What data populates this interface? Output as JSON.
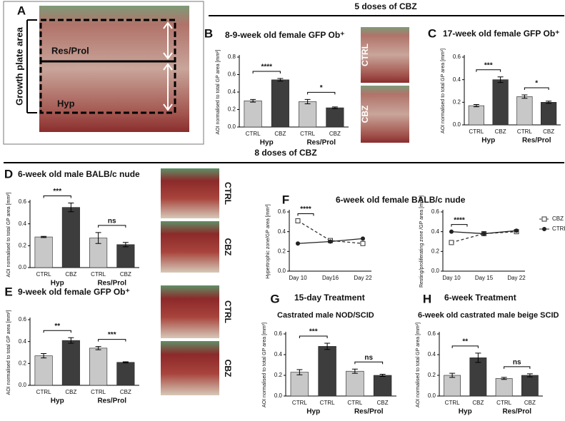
{
  "figure": {
    "headers": [
      "5 doses of CBZ",
      "8 doses of CBZ"
    ],
    "panel_a": {
      "label": "A",
      "side_label": "Growth plate area",
      "zones": [
        "Res/Prol",
        "Hyp"
      ]
    },
    "image_labels": [
      "CTRL",
      "CBZ",
      "CTRL",
      "CBZ",
      "CTRL",
      "CBZ"
    ]
  },
  "chart_data": [
    {
      "type": "bar",
      "label": "B",
      "title": "8-9-week old female GFP Ob⁺",
      "ylabel": "AOI normalised to total GP area [mm²]",
      "categories": [
        "CTRL",
        "CBZ",
        "CTRL",
        "CBZ"
      ],
      "groups": [
        "Hyp",
        "Res/Prol"
      ],
      "values": [
        0.3,
        0.54,
        0.29,
        0.22
      ],
      "errors": [
        0.015,
        0.015,
        0.025,
        0.01
      ],
      "colors": [
        "#c8c8c8",
        "#3d3d3d",
        "#c8c8c8",
        "#3d3d3d"
      ],
      "significance": [
        "****",
        "*"
      ],
      "ylim": [
        0,
        0.8
      ],
      "yticks": [
        {
          "value": 0,
          "label": "0.0"
        },
        0.2,
        0.4,
        0.6,
        0.8
      ]
    },
    {
      "type": "bar",
      "label": "C",
      "title": "17-week old female GFP Ob⁺",
      "ylabel": "AOI normalised to total GP area [mm²]",
      "categories": [
        "CTRL",
        "CBZ",
        "CTRL",
        "CBZ"
      ],
      "groups": [
        "Hyp",
        "Res/Prol"
      ],
      "values": [
        0.17,
        0.4,
        0.25,
        0.2
      ],
      "errors": [
        0.01,
        0.025,
        0.015,
        0.01
      ],
      "colors": [
        "#c8c8c8",
        "#3d3d3d",
        "#c8c8c8",
        "#3d3d3d"
      ],
      "significance": [
        "***",
        "*"
      ],
      "ylim": [
        0,
        0.6
      ],
      "yticks": [
        {
          "value": 0,
          "label": "0.0"
        },
        0.2,
        0.4,
        0.6
      ]
    },
    {
      "type": "bar",
      "label": "D",
      "title": "6-week old male BALB/c nude",
      "ylabel": "AOI normalised to total GP area [mm²]",
      "categories": [
        "CTRL",
        "CBZ",
        "CTRL",
        "CBZ"
      ],
      "groups": [
        "Hyp",
        "Res/Prol"
      ],
      "values": [
        0.28,
        0.55,
        0.27,
        0.21
      ],
      "errors": [
        0.005,
        0.04,
        0.05,
        0.02
      ],
      "colors": [
        "#c8c8c8",
        "#3d3d3d",
        "#c8c8c8",
        "#3d3d3d"
      ],
      "significance": [
        "***",
        "ns"
      ],
      "ylim": [
        0,
        0.6
      ],
      "yticks": [
        {
          "value": 0,
          "label": "0.0"
        },
        0.2,
        0.4,
        0.6
      ]
    },
    {
      "type": "bar",
      "label": "E",
      "title": "9-week old female GFP Ob⁺",
      "ylabel": "AOI normalised to total GP area [mm²]",
      "categories": [
        "CTRL",
        "CBZ",
        "CTRL",
        "CBZ"
      ],
      "groups": [
        "Hyp",
        "Res/Prol"
      ],
      "values": [
        0.27,
        0.41,
        0.34,
        0.21
      ],
      "errors": [
        0.02,
        0.025,
        0.015,
        0.005
      ],
      "colors": [
        "#c8c8c8",
        "#3d3d3d",
        "#c8c8c8",
        "#3d3d3d"
      ],
      "significance": [
        "**",
        "***"
      ],
      "ylim": [
        0,
        0.6
      ],
      "yticks": [
        {
          "value": 0,
          "label": "0.0"
        },
        0.2,
        0.4,
        0.6
      ]
    },
    {
      "type": "line",
      "label": "F",
      "title": "6-week old female BALB/c nude",
      "series": [
        {
          "name": "CBZ",
          "color": "#333333",
          "marker": "square",
          "dashed": true
        },
        {
          "name": "CTRL",
          "color": "#222222",
          "marker": "circle",
          "dashed": false
        }
      ],
      "subplots": [
        {
          "ylabel": "Hypertrophic zone/GP area [mm²]",
          "categories": [
            "Day 10",
            "Day16",
            "Day 22"
          ],
          "values": [
            [
              0.51,
              0.31,
              0.28
            ],
            [
              0.28,
              0.3,
              0.33
            ]
          ],
          "significance": [
            "****"
          ],
          "ylim": [
            0,
            0.6
          ],
          "yticks": [
            {
              "value": 0,
              "label": "0.0"
            },
            0.2,
            0.4,
            0.6
          ]
        },
        {
          "ylabel": "Resting/proliferating zone /GP area [mm²]",
          "categories": [
            "Day 10",
            "Day 15",
            "Day 22"
          ],
          "values": [
            [
              0.29,
              0.38,
              0.4
            ],
            [
              0.4,
              0.38,
              0.41
            ]
          ],
          "significance": [
            "****"
          ],
          "ylim": [
            0,
            0.6
          ],
          "yticks": [
            {
              "value": 0,
              "label": "0.0"
            },
            0.2,
            0.4,
            0.6
          ]
        }
      ]
    },
    {
      "type": "bar",
      "label": "G",
      "title": "15-day Treatment",
      "subtitle": "Castrated male NOD/SCID",
      "ylabel": "AOI normalised to total GP area [mm²]",
      "categories": [
        "CTRL",
        "CTRL",
        "CTRL",
        "CBZ"
      ],
      "groups": [
        "Hyp",
        "Res/Prol"
      ],
      "values": [
        0.23,
        0.48,
        0.24,
        0.2
      ],
      "errors": [
        0.025,
        0.03,
        0.02,
        0.01
      ],
      "colors": [
        "#c8c8c8",
        "#3d3d3d",
        "#c8c8c8",
        "#3d3d3d"
      ],
      "significance": [
        "***",
        "ns"
      ],
      "ylim": [
        0,
        0.6
      ],
      "yticks": [
        {
          "value": 0,
          "label": "0.0"
        },
        0.2,
        0.4,
        0.6
      ]
    },
    {
      "type": "bar",
      "label": "H",
      "title": "6-week Treatment",
      "subtitle": "6-week old castrated male beige SCID",
      "ylabel": "AOI normalised to total GP area [mm²]",
      "categories": [
        "CTRL",
        "CBZ",
        "CTRL",
        "CBZ"
      ],
      "groups": [
        "Hyp",
        "Res/Prol"
      ],
      "values": [
        0.2,
        0.37,
        0.17,
        0.2
      ],
      "errors": [
        0.02,
        0.045,
        0.01,
        0.015
      ],
      "colors": [
        "#c8c8c8",
        "#3d3d3d",
        "#c8c8c8",
        "#3d3d3d"
      ],
      "significance": [
        "**",
        "ns"
      ],
      "ylim": [
        0,
        0.6
      ],
      "yticks": [
        {
          "value": 0,
          "label": "0.0"
        },
        0.2,
        0.4,
        0.6
      ]
    }
  ]
}
